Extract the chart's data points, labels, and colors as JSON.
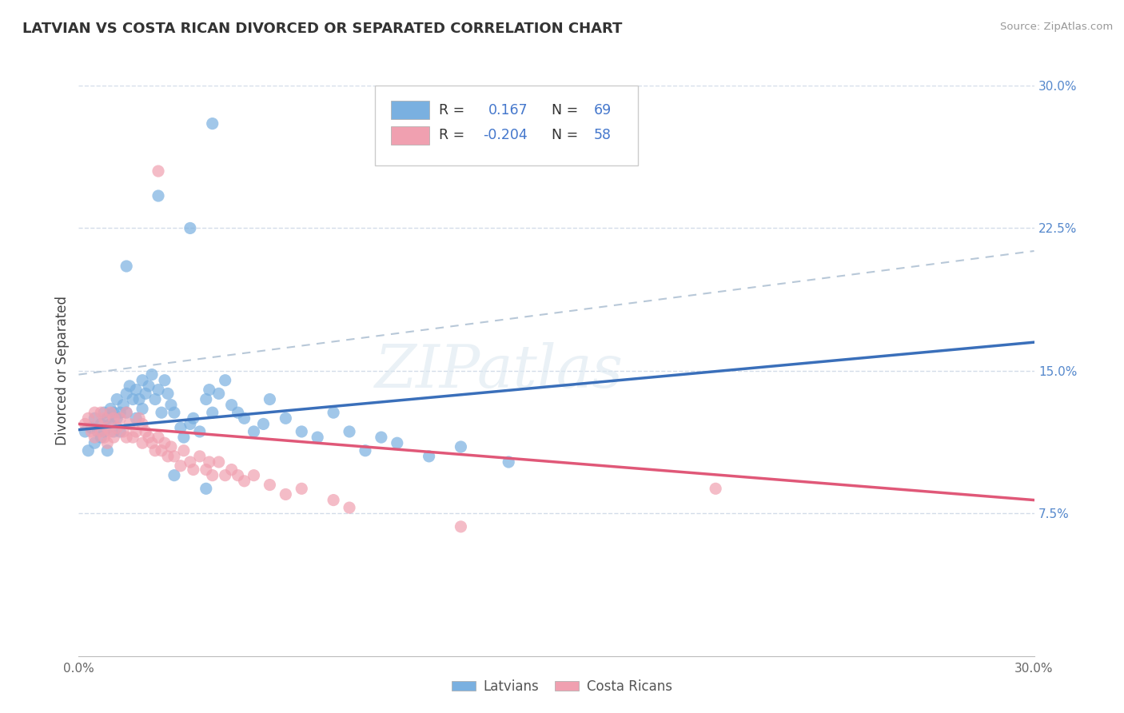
{
  "title": "LATVIAN VS COSTA RICAN DIVORCED OR SEPARATED CORRELATION CHART",
  "source": "Source: ZipAtlas.com",
  "ylabel": "Divorced or Separated",
  "xlim": [
    0.0,
    0.3
  ],
  "ylim": [
    0.0,
    0.3
  ],
  "ytick_labels_right": [
    "7.5%",
    "15.0%",
    "22.5%",
    "30.0%"
  ],
  "ytick_positions_right": [
    0.075,
    0.15,
    0.225,
    0.3
  ],
  "latvian_color": "#7ab0e0",
  "costa_rican_color": "#f0a0b0",
  "latvian_line_color": "#3a6fba",
  "costa_rican_line_color": "#e05878",
  "trend_line_color": "#b8c8d8",
  "background_color": "#ffffff",
  "grid_color": "#c8d4e4",
  "watermark_text": "ZIPatlas",
  "latvian_points": [
    [
      0.002,
      0.118
    ],
    [
      0.003,
      0.108
    ],
    [
      0.004,
      0.12
    ],
    [
      0.005,
      0.125
    ],
    [
      0.005,
      0.112
    ],
    [
      0.006,
      0.118
    ],
    [
      0.007,
      0.122
    ],
    [
      0.007,
      0.115
    ],
    [
      0.008,
      0.128
    ],
    [
      0.008,
      0.118
    ],
    [
      0.009,
      0.125
    ],
    [
      0.009,
      0.108
    ],
    [
      0.01,
      0.13
    ],
    [
      0.01,
      0.122
    ],
    [
      0.011,
      0.118
    ],
    [
      0.011,
      0.128
    ],
    [
      0.012,
      0.135
    ],
    [
      0.012,
      0.125
    ],
    [
      0.013,
      0.128
    ],
    [
      0.013,
      0.118
    ],
    [
      0.014,
      0.132
    ],
    [
      0.015,
      0.138
    ],
    [
      0.015,
      0.128
    ],
    [
      0.016,
      0.142
    ],
    [
      0.017,
      0.135
    ],
    [
      0.018,
      0.14
    ],
    [
      0.018,
      0.125
    ],
    [
      0.019,
      0.135
    ],
    [
      0.02,
      0.145
    ],
    [
      0.02,
      0.13
    ],
    [
      0.021,
      0.138
    ],
    [
      0.022,
      0.142
    ],
    [
      0.023,
      0.148
    ],
    [
      0.024,
      0.135
    ],
    [
      0.025,
      0.14
    ],
    [
      0.026,
      0.128
    ],
    [
      0.027,
      0.145
    ],
    [
      0.028,
      0.138
    ],
    [
      0.029,
      0.132
    ],
    [
      0.03,
      0.128
    ],
    [
      0.032,
      0.12
    ],
    [
      0.033,
      0.115
    ],
    [
      0.035,
      0.122
    ],
    [
      0.036,
      0.125
    ],
    [
      0.038,
      0.118
    ],
    [
      0.04,
      0.135
    ],
    [
      0.041,
      0.14
    ],
    [
      0.042,
      0.128
    ],
    [
      0.044,
      0.138
    ],
    [
      0.046,
      0.145
    ],
    [
      0.048,
      0.132
    ],
    [
      0.05,
      0.128
    ],
    [
      0.052,
      0.125
    ],
    [
      0.055,
      0.118
    ],
    [
      0.058,
      0.122
    ],
    [
      0.06,
      0.135
    ],
    [
      0.065,
      0.125
    ],
    [
      0.07,
      0.118
    ],
    [
      0.075,
      0.115
    ],
    [
      0.08,
      0.128
    ],
    [
      0.085,
      0.118
    ],
    [
      0.09,
      0.108
    ],
    [
      0.095,
      0.115
    ],
    [
      0.1,
      0.112
    ],
    [
      0.11,
      0.105
    ],
    [
      0.12,
      0.11
    ],
    [
      0.135,
      0.102
    ],
    [
      0.03,
      0.095
    ],
    [
      0.04,
      0.088
    ],
    [
      0.025,
      0.242
    ],
    [
      0.035,
      0.225
    ],
    [
      0.015,
      0.205
    ],
    [
      0.042,
      0.28
    ]
  ],
  "costa_rican_points": [
    [
      0.002,
      0.122
    ],
    [
      0.003,
      0.125
    ],
    [
      0.004,
      0.118
    ],
    [
      0.005,
      0.128
    ],
    [
      0.005,
      0.115
    ],
    [
      0.006,
      0.122
    ],
    [
      0.007,
      0.118
    ],
    [
      0.007,
      0.128
    ],
    [
      0.008,
      0.115
    ],
    [
      0.008,
      0.125
    ],
    [
      0.009,
      0.12
    ],
    [
      0.009,
      0.112
    ],
    [
      0.01,
      0.128
    ],
    [
      0.01,
      0.118
    ],
    [
      0.011,
      0.125
    ],
    [
      0.011,
      0.115
    ],
    [
      0.012,
      0.12
    ],
    [
      0.013,
      0.125
    ],
    [
      0.014,
      0.118
    ],
    [
      0.015,
      0.128
    ],
    [
      0.015,
      0.115
    ],
    [
      0.016,
      0.122
    ],
    [
      0.017,
      0.115
    ],
    [
      0.018,
      0.118
    ],
    [
      0.019,
      0.125
    ],
    [
      0.02,
      0.112
    ],
    [
      0.02,
      0.122
    ],
    [
      0.021,
      0.118
    ],
    [
      0.022,
      0.115
    ],
    [
      0.023,
      0.112
    ],
    [
      0.024,
      0.108
    ],
    [
      0.025,
      0.115
    ],
    [
      0.026,
      0.108
    ],
    [
      0.027,
      0.112
    ],
    [
      0.028,
      0.105
    ],
    [
      0.029,
      0.11
    ],
    [
      0.03,
      0.105
    ],
    [
      0.032,
      0.1
    ],
    [
      0.033,
      0.108
    ],
    [
      0.035,
      0.102
    ],
    [
      0.036,
      0.098
    ],
    [
      0.038,
      0.105
    ],
    [
      0.04,
      0.098
    ],
    [
      0.041,
      0.102
    ],
    [
      0.042,
      0.095
    ],
    [
      0.044,
      0.102
    ],
    [
      0.046,
      0.095
    ],
    [
      0.048,
      0.098
    ],
    [
      0.05,
      0.095
    ],
    [
      0.052,
      0.092
    ],
    [
      0.055,
      0.095
    ],
    [
      0.06,
      0.09
    ],
    [
      0.065,
      0.085
    ],
    [
      0.07,
      0.088
    ],
    [
      0.08,
      0.082
    ],
    [
      0.085,
      0.078
    ],
    [
      0.2,
      0.088
    ],
    [
      0.025,
      0.255
    ],
    [
      0.12,
      0.068
    ]
  ]
}
